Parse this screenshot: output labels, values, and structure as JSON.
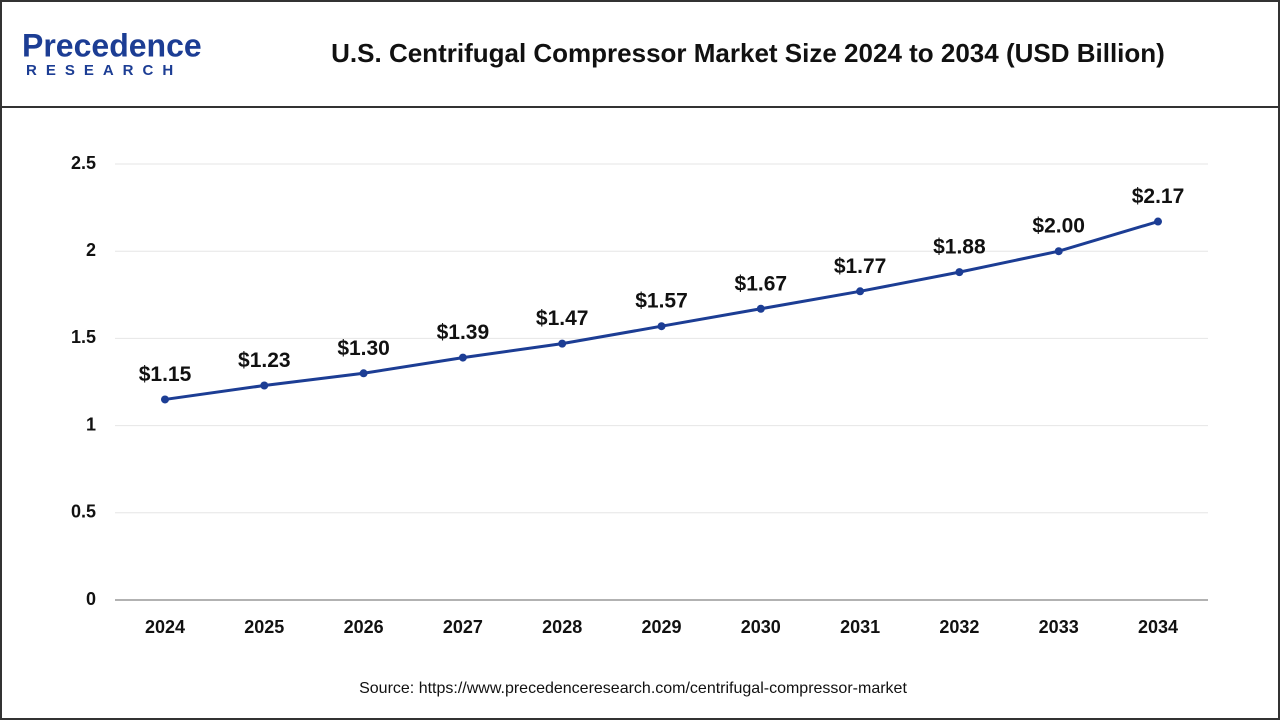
{
  "logo": {
    "name": "Precedence",
    "tagline": "RESEARCH"
  },
  "chart_data": {
    "type": "line",
    "title": "U.S. Centrifugal Compressor Market Size 2024 to 2034 (USD Billion)",
    "categories": [
      "2024",
      "2025",
      "2026",
      "2027",
      "2028",
      "2029",
      "2030",
      "2031",
      "2032",
      "2033",
      "2034"
    ],
    "values": [
      1.15,
      1.23,
      1.3,
      1.39,
      1.47,
      1.57,
      1.67,
      1.77,
      1.88,
      2.0,
      2.17
    ],
    "value_labels": [
      "$1.15",
      "$1.23",
      "$1.30",
      "$1.39",
      "$1.47",
      "$1.57",
      "$1.67",
      "$1.77",
      "$1.88",
      "$2.00",
      "$2.17"
    ],
    "color": "#1c3d94",
    "ylim": [
      0,
      2.5
    ],
    "yticks": [
      0,
      0.5,
      1,
      1.5,
      2,
      2.5
    ],
    "grid": true,
    "source": "Source: https://www.precedenceresearch.com/centrifugal-compressor-market"
  }
}
